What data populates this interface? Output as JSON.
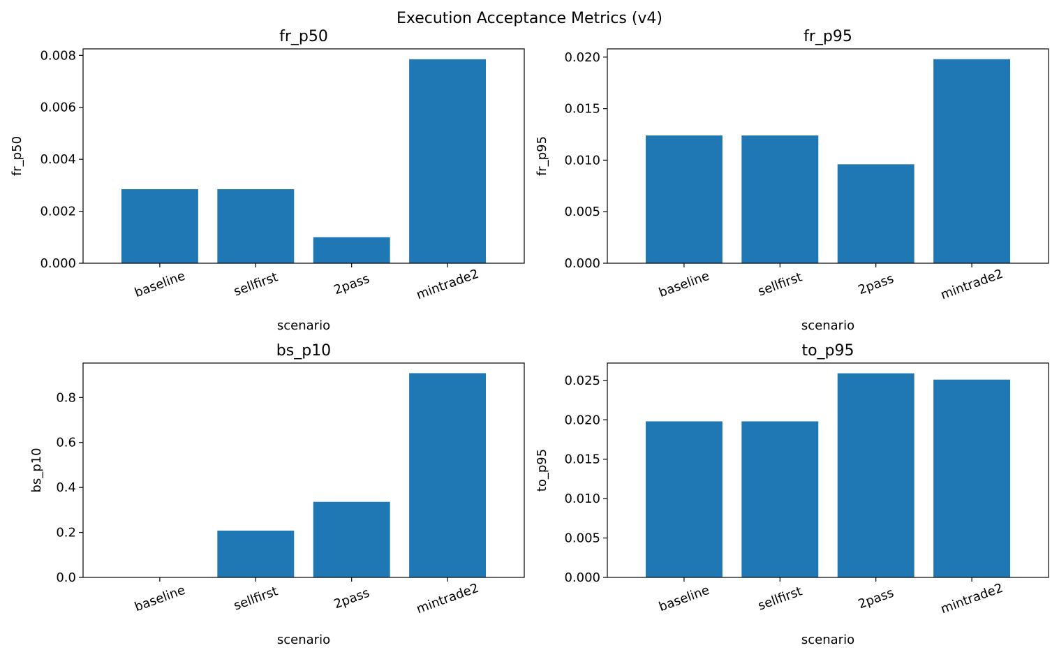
{
  "figure": {
    "suptitle": "Execution Acceptance Metrics (v4)",
    "bar_color": "#1f77b4"
  },
  "chart_data": [
    {
      "type": "bar",
      "title": "fr_p50",
      "xlabel": "scenario",
      "ylabel": "fr_p50",
      "categories": [
        "baseline",
        "sellfirst",
        "2pass",
        "mintrade2"
      ],
      "values": [
        0.00285,
        0.00285,
        0.001,
        0.00785
      ],
      "ylim": [
        0,
        0.00825
      ],
      "yticks": [
        0.0,
        0.002,
        0.004,
        0.006,
        0.008
      ],
      "ytick_labels": [
        "0.000",
        "0.002",
        "0.004",
        "0.006",
        "0.008"
      ]
    },
    {
      "type": "bar",
      "title": "fr_p95",
      "xlabel": "scenario",
      "ylabel": "fr_p95",
      "categories": [
        "baseline",
        "sellfirst",
        "2pass",
        "mintrade2"
      ],
      "values": [
        0.0124,
        0.0124,
        0.0096,
        0.0198
      ],
      "ylim": [
        0,
        0.0208
      ],
      "yticks": [
        0.0,
        0.005,
        0.01,
        0.015,
        0.02
      ],
      "ytick_labels": [
        "0.000",
        "0.005",
        "0.010",
        "0.015",
        "0.020"
      ]
    },
    {
      "type": "bar",
      "title": "bs_p10",
      "xlabel": "scenario",
      "ylabel": "bs_p10",
      "categories": [
        "baseline",
        "sellfirst",
        "2pass",
        "mintrade2"
      ],
      "values": [
        0.0,
        0.208,
        0.336,
        0.908
      ],
      "ylim": [
        0,
        0.953
      ],
      "yticks": [
        0.0,
        0.2,
        0.4,
        0.6,
        0.8
      ],
      "ytick_labels": [
        "0.0",
        "0.2",
        "0.4",
        "0.6",
        "0.8"
      ]
    },
    {
      "type": "bar",
      "title": "to_p95",
      "xlabel": "scenario",
      "ylabel": "to_p95",
      "categories": [
        "baseline",
        "sellfirst",
        "2pass",
        "mintrade2"
      ],
      "values": [
        0.0198,
        0.0198,
        0.0259,
        0.0251
      ],
      "ylim": [
        0,
        0.0272
      ],
      "yticks": [
        0.0,
        0.005,
        0.01,
        0.015,
        0.02,
        0.025
      ],
      "ytick_labels": [
        "0.000",
        "0.005",
        "0.010",
        "0.015",
        "0.020",
        "0.025"
      ]
    }
  ]
}
